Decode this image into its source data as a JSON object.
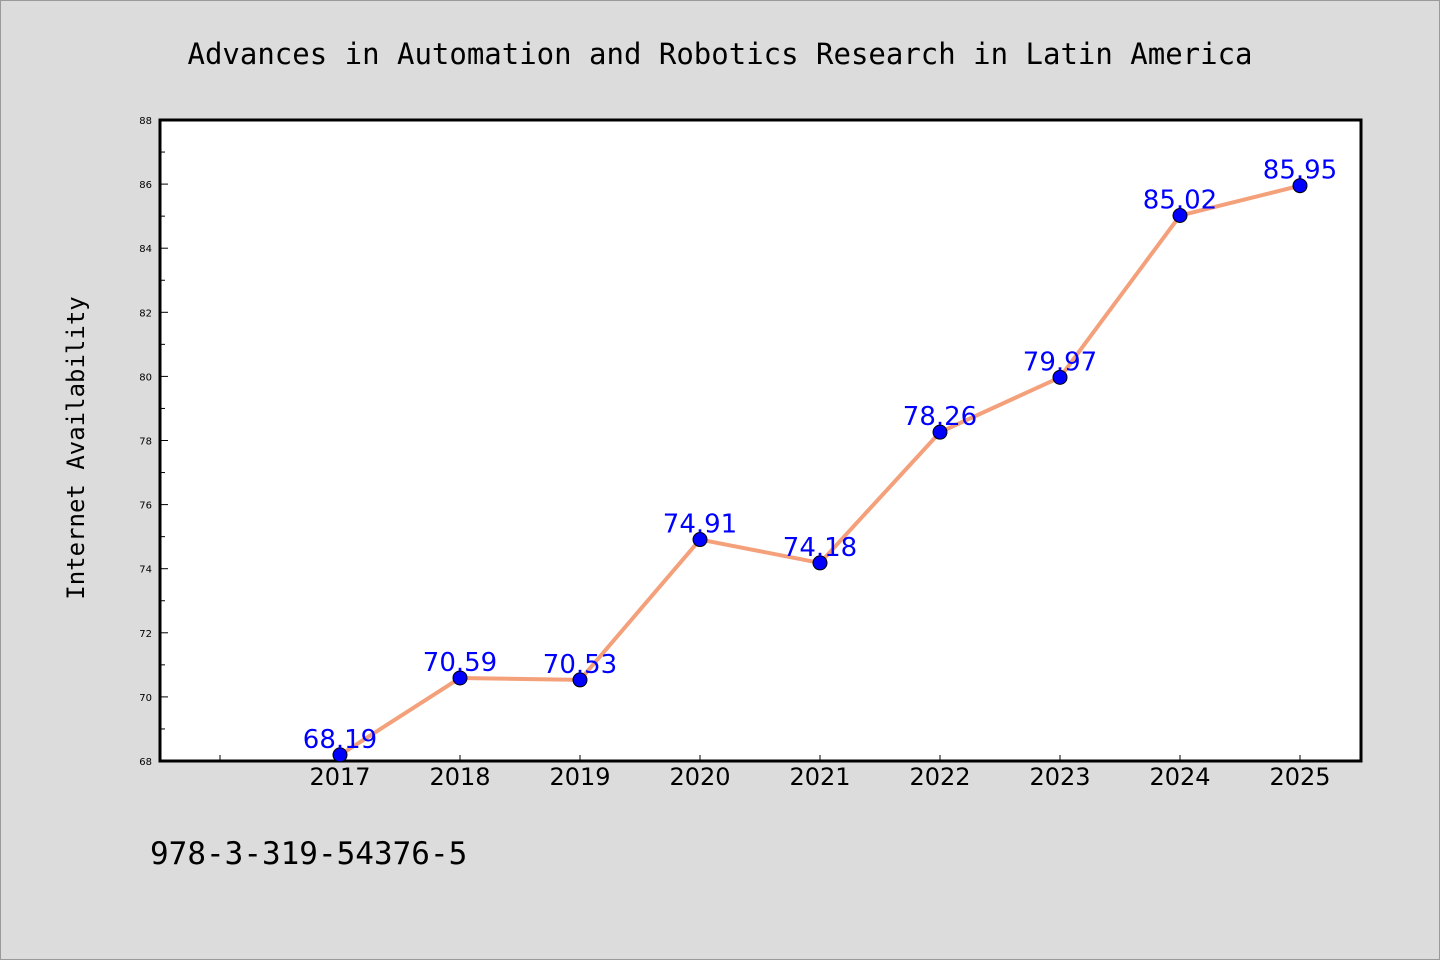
{
  "chart_data": {
    "type": "line",
    "title": "Advances in Automation and Robotics Research in Latin America",
    "xlabel": "",
    "ylabel": "Internet Availability",
    "categories": [
      "2017",
      "2018",
      "2019",
      "2020",
      "2021",
      "2022",
      "2023",
      "2024",
      "2025"
    ],
    "series": [
      {
        "values": [
          68.19,
          70.59,
          70.53,
          74.91,
          74.18,
          78.26,
          79.97,
          85.02,
          85.95
        ]
      }
    ],
    "ylim": [
      68,
      88
    ],
    "yticks": [
      68,
      70,
      72,
      74,
      76,
      78,
      80,
      82,
      84,
      86,
      88
    ],
    "grid": false,
    "legend": "none",
    "colors": {
      "background": "#dcdcdc",
      "plot_background": "#ffffff",
      "line": "#f4a07a",
      "marker": "#0000ff",
      "data_label": "#0000ff"
    }
  },
  "footer": {
    "isbn": "978-3-319-54376-5"
  }
}
